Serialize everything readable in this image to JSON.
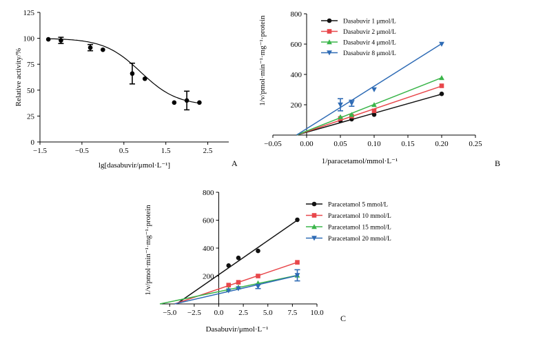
{
  "chart_data": [
    {
      "panel": "A",
      "type": "scatter",
      "xlabel": "lg[dasabuvir/μmol·L⁻¹]",
      "ylabel": "Relative activity/%",
      "xlim": [
        -1.5,
        3.0
      ],
      "ylim": [
        0,
        125
      ],
      "xticks": [
        "−1.5",
        "−0.5",
        "0.5",
        "1.5",
        "2.5"
      ],
      "yticks": [
        "0",
        "25",
        "50",
        "75",
        "100",
        "125"
      ],
      "points": [
        {
          "x": -1.3,
          "y": 99,
          "err": 0
        },
        {
          "x": -1.0,
          "y": 98,
          "err": 3
        },
        {
          "x": -0.3,
          "y": 91,
          "err": 3
        },
        {
          "x": 0.0,
          "y": 89,
          "err": 0
        },
        {
          "x": 0.7,
          "y": 66,
          "err": 10
        },
        {
          "x": 1.0,
          "y": 61,
          "err": 0
        },
        {
          "x": 1.7,
          "y": 38,
          "err": 0
        },
        {
          "x": 2.0,
          "y": 40,
          "err": 9
        },
        {
          "x": 2.3,
          "y": 38,
          "err": 0
        }
      ],
      "fit": {
        "model": "sigmoid",
        "top": 100,
        "bottom": 35,
        "logIC50": 0.9,
        "hill": 1.0,
        "x_range": [
          -1.3,
          2.3
        ]
      }
    },
    {
      "panel": "B",
      "type": "line",
      "xlabel": "1/paracetamol/mmol·L⁻¹",
      "ylabel": "1/v/pmol·min⁻¹·mg⁻¹·protein",
      "xlim": [
        -0.05,
        0.25
      ],
      "ylim": [
        0,
        800
      ],
      "xticks": [
        "−0.05",
        "0.00",
        "0.05",
        "0.10",
        "0.15",
        "0.20",
        "0.25"
      ],
      "yticks": [
        "200",
        "400",
        "600",
        "800"
      ],
      "series": [
        {
          "name": "Dasabuvir 1 μmol/L",
          "color": "#111111",
          "marker": "circle",
          "x": [
            0.05,
            0.0667,
            0.1,
            0.2
          ],
          "y": [
            95,
            105,
            135,
            272
          ],
          "err": [
            0,
            0,
            0,
            0
          ],
          "line": {
            "x": [
              -0.015,
              0.2
            ],
            "y": [
              0,
              270
            ]
          }
        },
        {
          "name": "Dasabuvir 2 μmol/L",
          "color": "#e8474b",
          "marker": "square",
          "x": [
            0.05,
            0.0667,
            0.1,
            0.2
          ],
          "y": [
            110,
            125,
            160,
            325
          ],
          "err": [
            0,
            0,
            0,
            0
          ],
          "line": {
            "x": [
              -0.015,
              0.2
            ],
            "y": [
              0,
              323
            ]
          }
        },
        {
          "name": "Dasabuvir 4 μmol/L",
          "color": "#3ab54a",
          "marker": "triangle",
          "x": [
            0.05,
            0.0667,
            0.1,
            0.2
          ],
          "y": [
            120,
            135,
            200,
            378
          ],
          "err": [
            0,
            0,
            0,
            0
          ],
          "line": {
            "x": [
              -0.015,
              0.2
            ],
            "y": [
              0,
              378
            ]
          }
        },
        {
          "name": "Dasabuvir 8 μmol/L",
          "color": "#2e6bb5",
          "marker": "triangle-down",
          "x": [
            0.05,
            0.0667,
            0.1,
            0.2
          ],
          "y": [
            200,
            210,
            300,
            600
          ],
          "err": [
            40,
            20,
            0,
            0
          ],
          "line": {
            "x": [
              -0.015,
              0.2
            ],
            "y": [
              0,
              603
            ]
          }
        }
      ]
    },
    {
      "panel": "C",
      "type": "line",
      "xlabel": "Dasabuvir/μmol·L⁻¹",
      "ylabel": "1/v/pmol·min⁻¹·mg⁻¹·protein",
      "xlim": [
        -6,
        10
      ],
      "ylim": [
        0,
        800
      ],
      "xticks": [
        "−5.0",
        "−2.5",
        "0.0",
        "2.5",
        "5.0",
        "7.5",
        "10.0"
      ],
      "yticks": [
        "200",
        "400",
        "600",
        "800"
      ],
      "series": [
        {
          "name": "Paracetamol 5 mmol/L",
          "color": "#111111",
          "marker": "circle",
          "x": [
            1,
            2,
            4,
            8
          ],
          "y": [
            275,
            330,
            380,
            603
          ],
          "err": [
            0,
            0,
            0,
            0
          ],
          "line": {
            "x": [
              -4.3,
              8
            ],
            "y": [
              0,
              600
            ]
          }
        },
        {
          "name": "Paracetamol 10 mmol/L",
          "color": "#e8474b",
          "marker": "square",
          "x": [
            1,
            2,
            4,
            8
          ],
          "y": [
            135,
            155,
            200,
            298
          ],
          "err": [
            0,
            0,
            0,
            0
          ],
          "line": {
            "x": [
              -4.5,
              8
            ],
            "y": [
              0,
              298
            ]
          }
        },
        {
          "name": "Paracetamol 15 mmol/L",
          "color": "#3ab54a",
          "marker": "triangle",
          "x": [
            1,
            2,
            4,
            8
          ],
          "y": [
            105,
            120,
            150,
            205
          ],
          "err": [
            0,
            0,
            0,
            0
          ],
          "line": {
            "x": [
              -6,
              8
            ],
            "y": [
              0,
              205
            ]
          }
        },
        {
          "name": "Paracetamol 20 mmol/L",
          "color": "#2e6bb5",
          "marker": "triangle-down",
          "x": [
            1,
            2,
            4,
            8
          ],
          "y": [
            95,
            110,
            125,
            205
          ],
          "err": [
            0,
            0,
            15,
            40
          ],
          "line": {
            "x": [
              -4.5,
              8
            ],
            "y": [
              0,
              203
            ]
          }
        }
      ]
    }
  ]
}
